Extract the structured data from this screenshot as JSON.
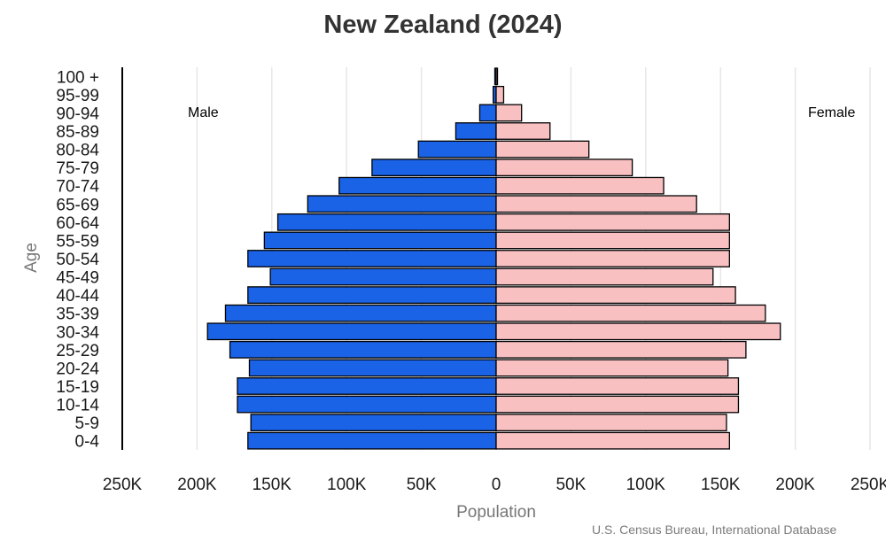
{
  "chart_data": {
    "type": "bar",
    "title": "New Zealand (2024)",
    "xlabel": "Population",
    "ylabel": "Age",
    "source": "U.S. Census Bureau, International Database",
    "left_label": "Male",
    "right_label": "Female",
    "categories": [
      "100 +",
      "95-99",
      "90-94",
      "85-89",
      "80-84",
      "75-79",
      "70-74",
      "65-69",
      "60-64",
      "55-59",
      "50-54",
      "45-49",
      "40-44",
      "35-39",
      "30-34",
      "25-29",
      "20-24",
      "15-19",
      "10-14",
      "5-9",
      "0-4"
    ],
    "series": [
      {
        "name": "Male",
        "color": "#1a62e6",
        "values": [
          400,
          2000,
          11000,
          27000,
          52000,
          83000,
          105000,
          126000,
          146000,
          155000,
          166000,
          151000,
          166000,
          181000,
          193000,
          178000,
          165000,
          173000,
          173000,
          164000,
          166000
        ]
      },
      {
        "name": "Female",
        "color": "#f9c0c2",
        "values": [
          700,
          5000,
          17000,
          36000,
          62000,
          91000,
          112000,
          134000,
          156000,
          156000,
          156000,
          145000,
          160000,
          180000,
          190000,
          167000,
          155000,
          162000,
          162000,
          154000,
          156000
        ]
      }
    ],
    "xlim": [
      -250000,
      250000
    ],
    "xticks": [
      {
        "value": -250000,
        "label": "250K"
      },
      {
        "value": -200000,
        "label": "200K"
      },
      {
        "value": -150000,
        "label": "150K"
      },
      {
        "value": -100000,
        "label": "100K"
      },
      {
        "value": -50000,
        "label": "50K"
      },
      {
        "value": 0,
        "label": "0"
      },
      {
        "value": 50000,
        "label": "50K"
      },
      {
        "value": 100000,
        "label": "100K"
      },
      {
        "value": 150000,
        "label": "150K"
      },
      {
        "value": 200000,
        "label": "200K"
      },
      {
        "value": 250000,
        "label": "250K"
      }
    ],
    "grid": true
  }
}
